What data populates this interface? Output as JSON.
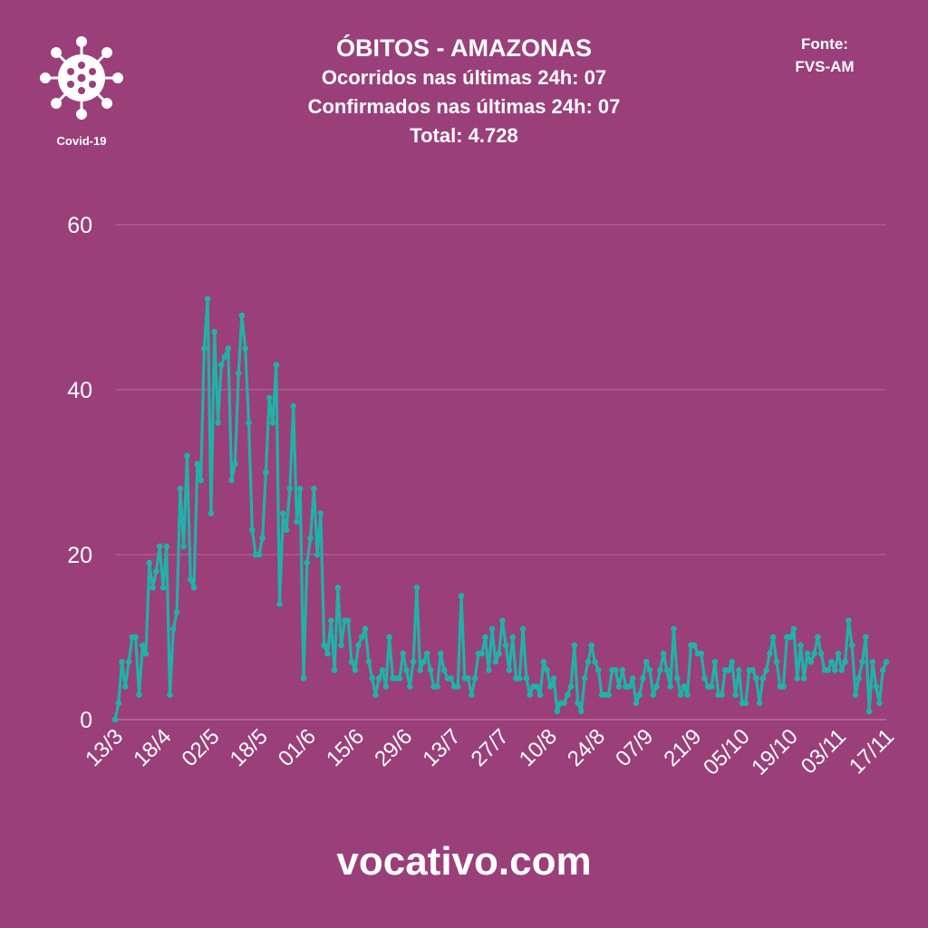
{
  "logo": {
    "icon": "virus-icon",
    "label": "Covid-19"
  },
  "header": {
    "title": "ÓBITOS - AMAZONAS",
    "line1": "Ocorridos nas últimas 24h: 07",
    "line2": "Confirmados nas últimas 24h: 07",
    "line3": "Total: 4.728"
  },
  "source": {
    "label": "Fonte:",
    "name": "FVS-AM"
  },
  "footer": {
    "site": "vocativo.com"
  },
  "colors": {
    "background": "#9a3f79",
    "line": "#1fb2a8",
    "grid": "#b66a9b",
    "text": "#ffffff"
  },
  "chart_data": {
    "type": "line",
    "title": "",
    "xlabel": "",
    "ylabel": "",
    "ylim": [
      0,
      60
    ],
    "yticks": [
      0,
      20,
      40,
      60
    ],
    "xticks": [
      "13/3",
      "18/4",
      "02/5",
      "18/5",
      "01/6",
      "15/6",
      "29/6",
      "13/7",
      "27/7",
      "10/8",
      "24/8",
      "07/9",
      "21/9",
      "05/10",
      "19/10",
      "03/11",
      "17/11"
    ],
    "grid": true,
    "legend": "none",
    "series": [
      {
        "values": [
          0,
          2,
          7,
          4,
          7,
          10,
          10,
          3,
          9,
          8,
          19,
          16,
          18,
          21,
          16,
          21,
          3,
          11,
          13,
          28,
          21,
          32,
          17,
          16,
          31,
          29,
          45,
          51,
          25,
          47,
          36,
          43,
          44,
          45,
          29,
          31,
          42,
          49,
          45,
          36,
          23,
          20,
          20,
          22,
          30,
          39,
          36,
          43,
          14,
          25,
          23,
          28,
          38,
          24,
          28,
          5,
          19,
          22,
          28,
          20,
          25,
          9,
          8,
          12,
          6,
          16,
          9,
          12,
          12,
          7,
          6,
          9,
          10,
          11,
          7,
          5,
          3,
          5,
          6,
          4,
          10,
          5,
          5,
          5,
          8,
          6,
          4,
          7,
          16,
          6,
          7,
          8,
          6,
          4,
          4,
          8,
          6,
          5,
          5,
          4,
          4,
          15,
          5,
          5,
          3,
          5,
          8,
          8,
          10,
          6,
          11,
          7,
          8,
          12,
          9,
          6,
          10,
          5,
          5,
          11,
          5,
          3,
          4,
          4,
          3,
          7,
          6,
          4,
          5,
          1,
          2,
          2,
          3,
          4,
          9,
          2,
          1,
          5,
          7,
          9,
          7,
          6,
          3,
          3,
          3,
          6,
          6,
          4,
          6,
          4,
          4,
          5,
          2,
          3,
          5,
          7,
          6,
          3,
          4,
          6,
          8,
          6,
          4,
          11,
          5,
          3,
          4,
          3,
          9,
          9,
          8,
          8,
          5,
          4,
          4,
          7,
          3,
          3,
          6,
          6,
          7,
          3,
          6,
          2,
          2,
          6,
          6,
          5,
          2,
          5,
          6,
          8,
          10,
          7,
          4,
          4,
          10,
          10,
          11,
          5,
          9,
          5,
          8,
          7,
          8,
          10,
          8,
          6,
          6,
          7,
          6,
          8,
          6,
          7,
          12,
          9,
          3,
          5,
          7,
          10,
          1,
          7,
          4,
          2,
          6,
          7
        ]
      }
    ]
  }
}
